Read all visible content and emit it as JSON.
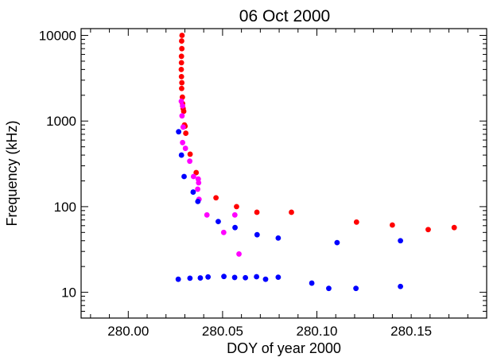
{
  "chart_data": {
    "type": "scatter",
    "title": "06 Oct 2000",
    "xlabel": "DOY of year 2000",
    "ylabel": "Frequency (kHz)",
    "xlim": [
      279.975,
      280.19
    ],
    "ylim": [
      5,
      12000
    ],
    "yscale": "log",
    "grid": false,
    "xticks": [
      280.0,
      280.05,
      280.1,
      280.15
    ],
    "xtick_labels": [
      "280.00",
      "280.05",
      "280.10",
      "280.15"
    ],
    "yticks": [
      10,
      100,
      1000,
      10000
    ],
    "ytick_labels": [
      "10",
      "100",
      "1000",
      "10000"
    ],
    "series": [
      {
        "color": "#ff0000",
        "points": [
          [
            280.0285,
            10000
          ],
          [
            280.0283,
            8600
          ],
          [
            280.0284,
            7000
          ],
          [
            280.0282,
            5700
          ],
          [
            280.0282,
            4800
          ],
          [
            280.0281,
            4000
          ],
          [
            280.0282,
            3300
          ],
          [
            280.0284,
            2800
          ],
          [
            280.0283,
            2400
          ],
          [
            280.0287,
            1900
          ],
          [
            280.0288,
            1600
          ],
          [
            280.0291,
            1400
          ],
          [
            280.0294,
            1300
          ],
          [
            280.0298,
            900
          ],
          [
            280.0301,
            870
          ],
          [
            280.0305,
            720
          ],
          [
            280.0328,
            410
          ],
          [
            280.036,
            250
          ],
          [
            280.0465,
            127
          ],
          [
            280.0574,
            100
          ],
          [
            280.0682,
            86
          ],
          [
            280.0865,
            86
          ],
          [
            280.121,
            66
          ],
          [
            280.14,
            61
          ],
          [
            280.159,
            54
          ],
          [
            280.1728,
            57
          ]
        ]
      },
      {
        "color": "#ff00ff",
        "points": [
          [
            280.0281,
            1700
          ],
          [
            280.0288,
            1500
          ],
          [
            280.0285,
            1150
          ],
          [
            280.0291,
            850
          ],
          [
            280.0288,
            560
          ],
          [
            280.0303,
            480
          ],
          [
            280.0326,
            340
          ],
          [
            280.0346,
            225
          ],
          [
            280.0371,
            210
          ],
          [
            280.0373,
            190
          ],
          [
            280.0368,
            160
          ],
          [
            280.0375,
            122
          ],
          [
            280.0417,
            80
          ],
          [
            280.0506,
            50
          ],
          [
            280.0565,
            80
          ],
          [
            280.0587,
            28
          ]
        ]
      },
      {
        "color": "#0000ff",
        "points": [
          [
            280.0267,
            750
          ],
          [
            280.0282,
            400
          ],
          [
            280.0296,
            225
          ],
          [
            280.0344,
            148
          ],
          [
            280.0369,
            115
          ],
          [
            280.0477,
            67
          ],
          [
            280.0566,
            57
          ],
          [
            280.0683,
            47
          ],
          [
            280.0795,
            43
          ],
          [
            280.1107,
            38
          ],
          [
            280.1443,
            40
          ],
          [
            280.0265,
            14.2
          ],
          [
            280.0327,
            14.6
          ],
          [
            280.0382,
            14.7
          ],
          [
            280.0423,
            15.1
          ],
          [
            280.0507,
            15.3
          ],
          [
            280.0564,
            14.9
          ],
          [
            280.0621,
            14.8
          ],
          [
            280.068,
            15.2
          ],
          [
            280.0728,
            14.2
          ],
          [
            280.0795,
            15.0
          ],
          [
            280.0973,
            12.8
          ],
          [
            280.1063,
            11.1
          ],
          [
            280.1207,
            11.1
          ],
          [
            280.1443,
            11.7
          ]
        ]
      }
    ]
  }
}
